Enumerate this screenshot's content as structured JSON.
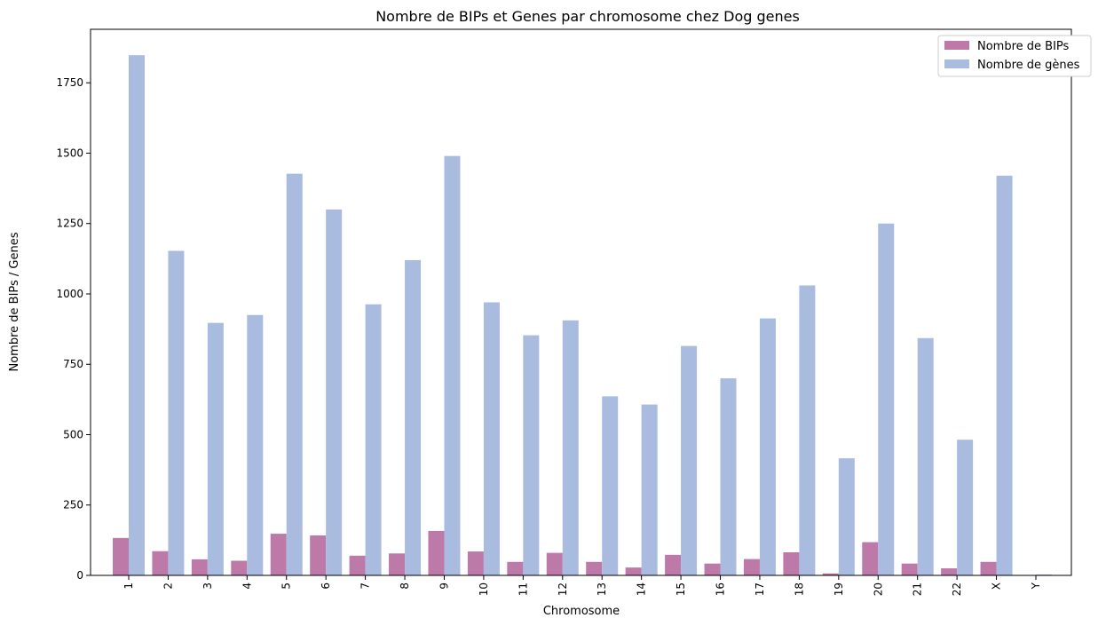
{
  "chart_data": {
    "type": "bar",
    "title": "Nombre de BIPs et Genes par chromosome chez Dog genes",
    "xlabel": "Chromosome",
    "ylabel": "Nombre de BIPs / Genes",
    "ylim": [
      0,
      1940
    ],
    "yticks": [
      0,
      250,
      500,
      750,
      1000,
      1250,
      1500,
      1750
    ],
    "legend_position": "top-right",
    "categories": [
      "1",
      "2",
      "3",
      "4",
      "5",
      "6",
      "7",
      "8",
      "9",
      "10",
      "11",
      "12",
      "13",
      "14",
      "15",
      "16",
      "17",
      "18",
      "19",
      "20",
      "21",
      "22",
      "X",
      "Y"
    ],
    "series": [
      {
        "name": "Nombre de BIPs",
        "color": "#bd7aa9",
        "values": [
          133,
          86,
          57,
          52,
          148,
          142,
          70,
          78,
          158,
          85,
          48,
          80,
          48,
          28,
          73,
          42,
          58,
          82,
          7,
          118,
          42,
          25,
          48,
          0
        ]
      },
      {
        "name": "Nombre de gènes",
        "color": "#aabbe0",
        "values": [
          1848,
          1153,
          897,
          925,
          1427,
          1300,
          963,
          1120,
          1490,
          970,
          853,
          906,
          636,
          607,
          815,
          700,
          913,
          1030,
          416,
          1250,
          843,
          482,
          1420,
          3
        ]
      }
    ]
  }
}
